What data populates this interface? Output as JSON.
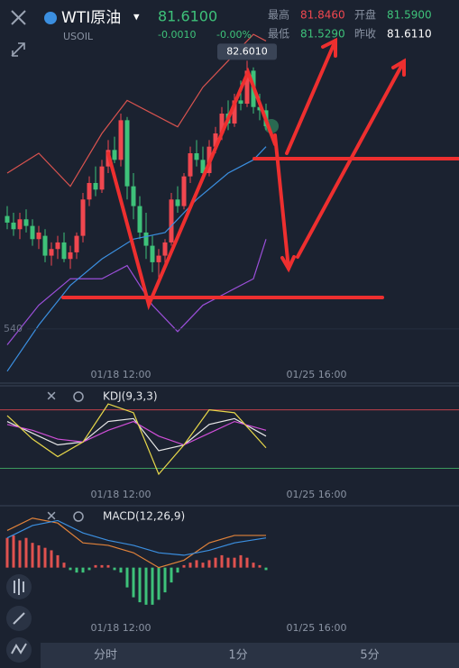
{
  "header": {
    "symbol": "WTI原油",
    "dropdown": "▾",
    "code": "USOIL",
    "price": "81.6100",
    "change": "-0.0010",
    "change_pct": "-0.00%",
    "high_label": "最高",
    "high": "81.8460",
    "open_label": "开盘",
    "open": "81.5900",
    "low_label": "最低",
    "low": "81.5290",
    "prev_label": "昨收",
    "prev": "81.6110"
  },
  "chart_data": [
    {
      "type": "candlestick",
      "ylim": [
        77.72,
        83.52
      ],
      "up_color": "#f0474f",
      "down_color": "#3ec27a",
      "yticks": [
        {
          "value": 78.54,
          "label": "540"
        }
      ],
      "xticks": [
        {
          "value": 18,
          "label": "01/18 12:00"
        },
        {
          "value": 49,
          "label": "01/25 16:00"
        }
      ],
      "max_label": {
        "value": 82.601,
        "label": "82.6010"
      },
      "candles": [
        [
          80.25,
          80.4,
          80.05,
          80.15
        ],
        [
          80.15,
          80.3,
          79.95,
          80.05
        ],
        [
          80.05,
          80.3,
          79.9,
          80.2
        ],
        [
          80.2,
          80.35,
          80.0,
          80.1
        ],
        [
          80.1,
          80.2,
          79.8,
          79.9
        ],
        [
          79.9,
          80.1,
          79.75,
          80.0
        ],
        [
          79.95,
          80.05,
          79.55,
          79.65
        ],
        [
          79.65,
          79.85,
          79.5,
          79.75
        ],
        [
          79.75,
          79.95,
          79.6,
          79.85
        ],
        [
          79.85,
          80.0,
          79.55,
          79.6
        ],
        [
          79.6,
          79.8,
          79.45,
          79.7
        ],
        [
          79.7,
          80.0,
          79.6,
          79.95
        ],
        [
          79.95,
          80.6,
          79.85,
          80.5
        ],
        [
          80.5,
          80.85,
          80.4,
          80.75
        ],
        [
          80.75,
          81.0,
          80.55,
          80.65
        ],
        [
          80.65,
          81.1,
          80.6,
          81.0
        ],
        [
          81.0,
          81.4,
          80.9,
          81.25
        ],
        [
          81.25,
          81.45,
          81.05,
          81.1
        ],
        [
          81.1,
          81.8,
          81.0,
          81.7
        ],
        [
          81.7,
          81.75,
          80.5,
          80.7
        ],
        [
          80.7,
          80.9,
          80.2,
          80.4
        ],
        [
          80.4,
          80.55,
          79.9,
          80.0
        ],
        [
          80.0,
          80.3,
          79.6,
          79.8
        ],
        [
          79.8,
          79.95,
          79.4,
          79.55
        ],
        [
          79.55,
          79.75,
          79.3,
          79.65
        ],
        [
          79.65,
          79.9,
          79.5,
          79.85
        ],
        [
          79.85,
          80.6,
          79.8,
          80.5
        ],
        [
          80.5,
          80.7,
          80.3,
          80.4
        ],
        [
          80.4,
          80.9,
          80.35,
          80.85
        ],
        [
          80.85,
          81.3,
          80.75,
          81.2
        ],
        [
          81.2,
          81.4,
          81.0,
          81.1
        ],
        [
          81.1,
          81.3,
          80.8,
          80.9
        ],
        [
          80.9,
          81.4,
          80.85,
          81.3
        ],
        [
          81.3,
          81.6,
          81.2,
          81.5
        ],
        [
          81.5,
          81.9,
          81.4,
          81.8
        ],
        [
          81.8,
          82.0,
          81.55,
          81.65
        ],
        [
          81.65,
          82.1,
          81.6,
          82.0
        ],
        [
          82.0,
          82.3,
          81.85,
          81.95
        ],
        [
          81.95,
          82.601,
          81.9,
          82.45
        ],
        [
          82.45,
          82.5,
          81.8,
          81.9
        ],
        [
          81.9,
          82.1,
          81.7,
          81.85
        ],
        [
          81.85,
          81.95,
          81.55,
          81.61
        ]
      ],
      "series": [
        {
          "color": "#d9534f",
          "x": [
            0,
            5,
            10,
            15,
            19,
            23,
            27,
            31,
            35,
            39,
            41
          ],
          "values": [
            80.9,
            81.2,
            80.7,
            81.5,
            82.0,
            81.8,
            81.6,
            82.2,
            82.6,
            83.0,
            82.9
          ]
        },
        {
          "color": "#9b4fd9",
          "x": [
            0,
            5,
            10,
            15,
            19,
            23,
            27,
            31,
            35,
            39,
            41
          ],
          "values": [
            78.3,
            78.9,
            79.3,
            79.3,
            79.5,
            78.9,
            78.5,
            78.9,
            79.1,
            79.3,
            79.9
          ]
        },
        {
          "color": "#3b8fe0",
          "x": [
            0,
            5,
            10,
            15,
            20,
            25,
            30,
            35,
            39,
            41
          ],
          "values": [
            77.9,
            78.6,
            79.2,
            79.6,
            79.9,
            80.0,
            80.5,
            80.9,
            81.1,
            81.3
          ]
        }
      ]
    },
    {
      "type": "line",
      "title": "KDJ(9,3,3)",
      "ylim": [
        -64,
        141
      ],
      "xticks": [
        {
          "value": 18,
          "label": "01/18 12:00"
        },
        {
          "value": 49,
          "label": "01/25 16:00"
        }
      ],
      "levels": [
        {
          "value": 100,
          "color": "#c0414a"
        },
        {
          "value": 0,
          "color": "#3d9a5e"
        }
      ],
      "series": [
        {
          "color": "#e8e8e8",
          "x": [
            0,
            4,
            8,
            12,
            16,
            20,
            24,
            28,
            32,
            36,
            41
          ],
          "values": [
            80,
            60,
            40,
            45,
            80,
            85,
            30,
            40,
            75,
            85,
            55
          ]
        },
        {
          "color": "#d04fd8",
          "x": [
            0,
            4,
            8,
            12,
            16,
            20,
            24,
            28,
            32,
            36,
            41
          ],
          "values": [
            75,
            65,
            50,
            45,
            65,
            80,
            55,
            40,
            60,
            80,
            65
          ]
        },
        {
          "color": "#e8d84a",
          "x": [
            0,
            4,
            8,
            12,
            16,
            20,
            24,
            28,
            32,
            36,
            41
          ],
          "values": [
            90,
            50,
            20,
            45,
            110,
            95,
            -10,
            40,
            100,
            95,
            35
          ]
        }
      ]
    },
    {
      "type": "bar",
      "title": "MACD(12,26,9)",
      "ylim": [
        -0.3,
        0.25
      ],
      "up_color": "#e0524f",
      "down_color": "#3ec27a",
      "xticks": [
        {
          "value": 18,
          "label": "01/18 12:00"
        },
        {
          "value": 49,
          "label": "01/25 16:00"
        }
      ],
      "values": [
        0.12,
        0.13,
        0.11,
        0.12,
        0.1,
        0.09,
        0.08,
        0.07,
        0.05,
        0.02,
        -0.01,
        -0.02,
        -0.02,
        -0.01,
        0.01,
        0.01,
        0.01,
        -0.01,
        -0.02,
        -0.08,
        -0.12,
        -0.14,
        -0.15,
        -0.15,
        -0.13,
        -0.1,
        -0.06,
        -0.02,
        0.01,
        0.02,
        0.03,
        0.02,
        0.03,
        0.04,
        0.05,
        0.04,
        0.04,
        0.05,
        0.04,
        0.02,
        0.01,
        -0.01
      ],
      "series": [
        {
          "color": "#e0823a",
          "x": [
            0,
            4,
            8,
            12,
            16,
            20,
            24,
            28,
            32,
            36,
            41
          ],
          "values": [
            0.15,
            0.2,
            0.18,
            0.1,
            0.09,
            0.06,
            0.0,
            0.03,
            0.1,
            0.13,
            0.13
          ]
        },
        {
          "color": "#3b8fe0",
          "x": [
            0,
            4,
            8,
            12,
            16,
            20,
            24,
            28,
            32,
            36,
            41
          ],
          "values": [
            0.12,
            0.17,
            0.19,
            0.14,
            0.11,
            0.09,
            0.06,
            0.05,
            0.07,
            0.1,
            0.12
          ]
        }
      ]
    }
  ],
  "tabs": [
    "分时",
    "1分",
    "5分"
  ]
}
